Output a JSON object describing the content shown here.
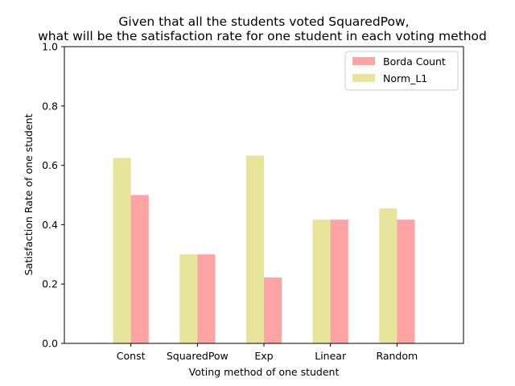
{
  "chart_data": {
    "type": "bar",
    "title": "Given that all the students voted SquaredPow,",
    "subtitle": "what will be the satisfaction rate for one student in each voting method",
    "xlabel": "Voting method of one student",
    "ylabel": "Satisfaction Rate of one student",
    "ylim": [
      0,
      1.0
    ],
    "yticks": [
      "0.0",
      "0.2",
      "0.4",
      "0.6",
      "0.8",
      "1.0"
    ],
    "categories": [
      "Const",
      "SquaredPow",
      "Exp",
      "Linear",
      "Random"
    ],
    "series": [
      {
        "name": "Norm_L1",
        "color": "#d4d04a",
        "values": [
          0.625,
          0.3,
          0.633,
          0.417,
          0.455
        ]
      },
      {
        "name": "Borda Count",
        "color": "#ff5a5a",
        "values": [
          0.5,
          0.3,
          0.222,
          0.417,
          0.417
        ]
      }
    ],
    "legend_order": [
      "Borda Count",
      "Norm_L1"
    ],
    "legend_position": "top-right",
    "grid": false
  }
}
